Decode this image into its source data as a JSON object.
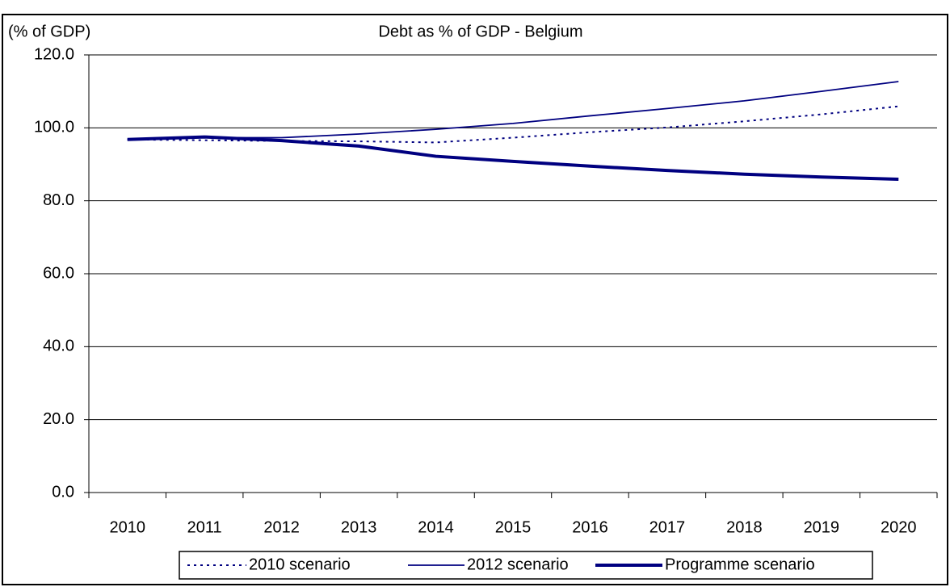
{
  "chart_data": {
    "type": "line",
    "title": "Debt as % of GDP - Belgium",
    "y_label": "(% of GDP)",
    "categories": [
      "2010",
      "2011",
      "2012",
      "2013",
      "2014",
      "2015",
      "2016",
      "2017",
      "2018",
      "2019",
      "2020"
    ],
    "series": [
      {
        "name": "2010 scenario",
        "color": "#000080",
        "line_style": "dotted",
        "values": [
          96.8,
          96.6,
          96.4,
          96.3,
          96.0,
          97.3,
          98.8,
          100.1,
          101.8,
          103.7,
          105.9
        ]
      },
      {
        "name": "2012 scenario",
        "color": "#000080",
        "line_style": "thin",
        "values": [
          96.8,
          97.3,
          97.3,
          98.3,
          99.6,
          101.2,
          103.3,
          105.3,
          107.4,
          110.0,
          112.7
        ]
      },
      {
        "name": "Programme scenario",
        "color": "#000080",
        "line_style": "thick",
        "values": [
          96.8,
          97.5,
          96.5,
          95.0,
          92.2,
          90.8,
          89.5,
          88.3,
          87.3,
          86.5,
          85.9
        ]
      }
    ],
    "ylim": [
      0,
      120
    ],
    "yticks": [
      {
        "value": 0,
        "label": "0.0"
      },
      {
        "value": 20,
        "label": "20.0"
      },
      {
        "value": 40,
        "label": "40.0"
      },
      {
        "value": 60,
        "label": "60.0"
      },
      {
        "value": 80,
        "label": "80.0"
      },
      {
        "value": 100,
        "label": "100.0"
      },
      {
        "value": 120,
        "label": "120.0"
      }
    ],
    "grid": true,
    "legend": "bottom"
  }
}
